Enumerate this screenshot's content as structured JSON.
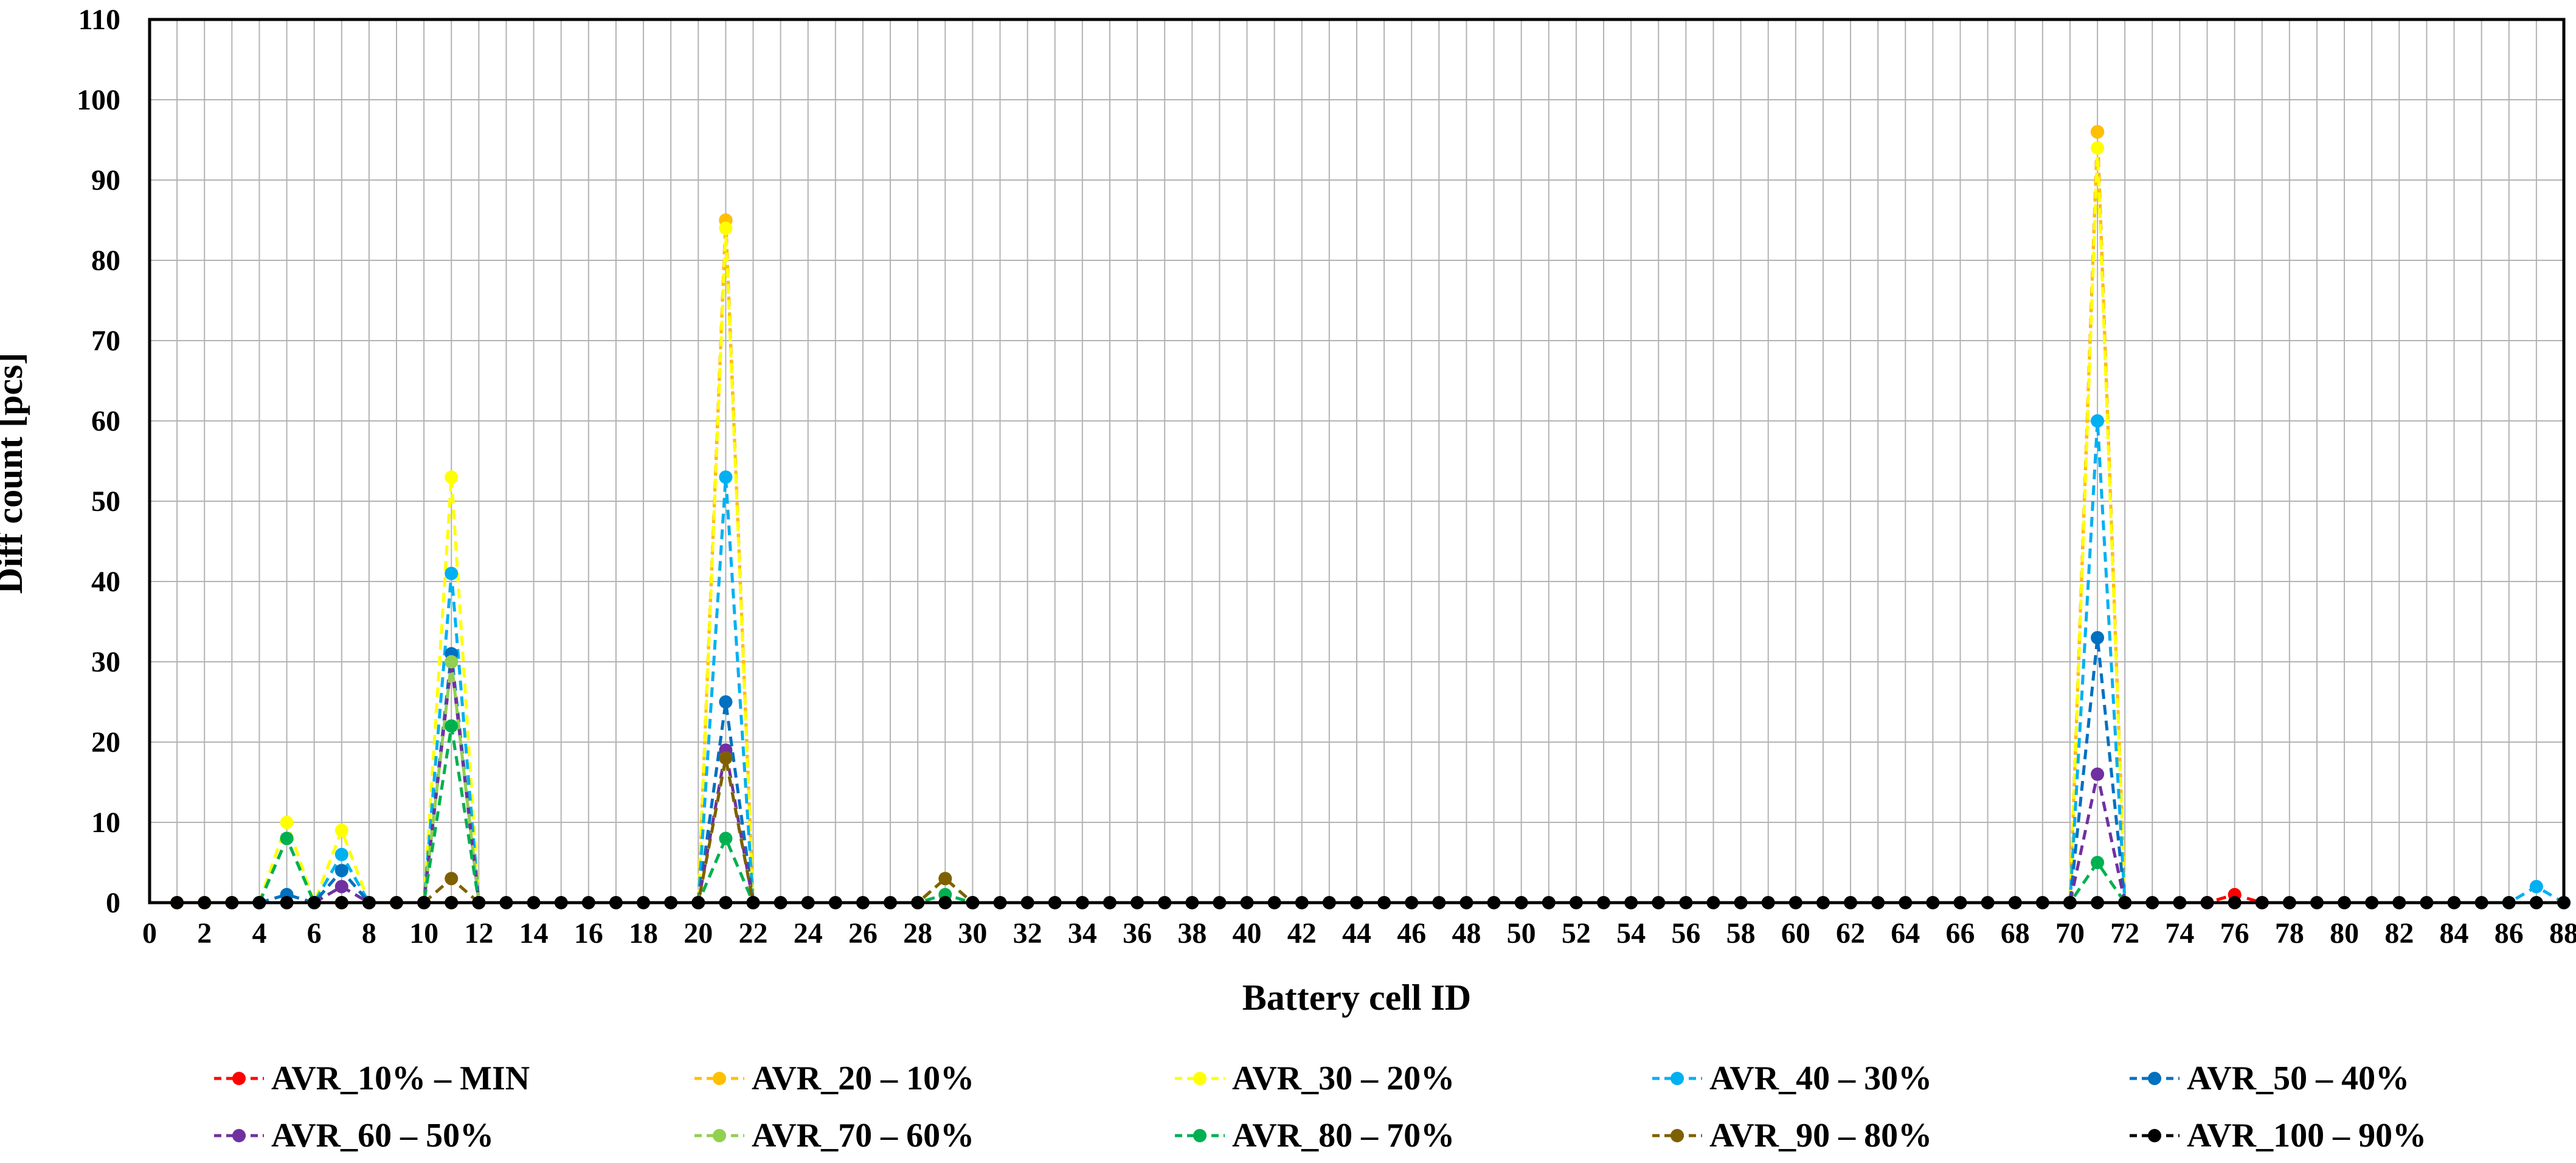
{
  "chart_data": {
    "type": "line",
    "title": "",
    "xlabel": "Battery cell ID",
    "ylabel": "Diff count [pcs]",
    "xlim": [
      0,
      88
    ],
    "ylim": [
      0,
      110
    ],
    "x_ticks": [
      0,
      2,
      4,
      6,
      8,
      10,
      12,
      14,
      16,
      18,
      20,
      22,
      24,
      26,
      28,
      30,
      32,
      34,
      36,
      38,
      40,
      42,
      44,
      46,
      48,
      50,
      52,
      54,
      56,
      58,
      60,
      62,
      64,
      66,
      68,
      70,
      72,
      74,
      76,
      78,
      80,
      82,
      84,
      86,
      88
    ],
    "y_ticks": [
      0,
      10,
      20,
      30,
      40,
      50,
      60,
      70,
      80,
      90,
      100,
      110
    ],
    "grid": true,
    "legend_position": "bottom",
    "series": [
      {
        "name": "AVR_10% – MIN",
        "color": "#ff0000",
        "points": [
          [
            1,
            0
          ],
          [
            2,
            0
          ],
          [
            3,
            0
          ],
          [
            4,
            0
          ],
          [
            5,
            0
          ],
          [
            6,
            0
          ],
          [
            7,
            0
          ],
          [
            8,
            0
          ],
          [
            9,
            0
          ],
          [
            10,
            0
          ],
          [
            11,
            0
          ],
          [
            12,
            0
          ],
          [
            20,
            0
          ],
          [
            21,
            85
          ],
          [
            22,
            0
          ],
          [
            70,
            0
          ],
          [
            71,
            96
          ],
          [
            72,
            0
          ],
          [
            75,
            0
          ],
          [
            76,
            1
          ],
          [
            77,
            0
          ]
        ]
      },
      {
        "name": "AVR_20 – 10%",
        "color": "#ffc000",
        "points": [
          [
            1,
            0
          ],
          [
            2,
            0
          ],
          [
            3,
            0
          ],
          [
            4,
            0
          ],
          [
            5,
            0
          ],
          [
            6,
            0
          ],
          [
            7,
            0
          ],
          [
            8,
            0
          ],
          [
            9,
            0
          ],
          [
            10,
            0
          ],
          [
            11,
            0
          ],
          [
            12,
            0
          ],
          [
            20,
            0
          ],
          [
            21,
            85
          ],
          [
            22,
            0
          ],
          [
            70,
            0
          ],
          [
            71,
            96
          ],
          [
            72,
            0
          ]
        ]
      },
      {
        "name": "AVR_30 – 20%",
        "color": "#ffff00",
        "points": [
          [
            4,
            0
          ],
          [
            5,
            10
          ],
          [
            6,
            0
          ],
          [
            7,
            9
          ],
          [
            8,
            0
          ],
          [
            10,
            0
          ],
          [
            11,
            53
          ],
          [
            12,
            0
          ],
          [
            20,
            0
          ],
          [
            21,
            84
          ],
          [
            22,
            0
          ],
          [
            70,
            0
          ],
          [
            71,
            94
          ],
          [
            72,
            0
          ]
        ]
      },
      {
        "name": "AVR_40 – 30%",
        "color": "#00b0f0",
        "points": [
          [
            4,
            0
          ],
          [
            5,
            8
          ],
          [
            6,
            0
          ],
          [
            7,
            6
          ],
          [
            8,
            0
          ],
          [
            10,
            0
          ],
          [
            11,
            41
          ],
          [
            12,
            0
          ],
          [
            20,
            0
          ],
          [
            21,
            53
          ],
          [
            22,
            0
          ],
          [
            70,
            0
          ],
          [
            71,
            60
          ],
          [
            72,
            0
          ],
          [
            86,
            0
          ],
          [
            87,
            2
          ],
          [
            88,
            0
          ]
        ]
      },
      {
        "name": "AVR_50 – 40%",
        "color": "#0070c0",
        "points": [
          [
            4,
            0
          ],
          [
            5,
            1
          ],
          [
            6,
            0
          ],
          [
            7,
            4
          ],
          [
            8,
            0
          ],
          [
            10,
            0
          ],
          [
            11,
            31
          ],
          [
            12,
            0
          ],
          [
            20,
            0
          ],
          [
            21,
            25
          ],
          [
            22,
            0
          ],
          [
            70,
            0
          ],
          [
            71,
            33
          ],
          [
            72,
            0
          ]
        ]
      },
      {
        "name": "AVR_60 – 50%",
        "color": "#7030a0",
        "points": [
          [
            6,
            0
          ],
          [
            7,
            2
          ],
          [
            8,
            0
          ],
          [
            10,
            0
          ],
          [
            11,
            30
          ],
          [
            12,
            0
          ],
          [
            20,
            0
          ],
          [
            21,
            19
          ],
          [
            22,
            0
          ],
          [
            70,
            0
          ],
          [
            71,
            16
          ],
          [
            72,
            0
          ]
        ]
      },
      {
        "name": "AVR_70 – 60%",
        "color": "#92d050",
        "points": [
          [
            10,
            0
          ],
          [
            11,
            30
          ],
          [
            12,
            0
          ],
          [
            20,
            0
          ],
          [
            21,
            18
          ],
          [
            22,
            0
          ],
          [
            28,
            0
          ],
          [
            29,
            3
          ],
          [
            30,
            0
          ]
        ]
      },
      {
        "name": "AVR_80 – 70%",
        "color": "#00b050",
        "points": [
          [
            4,
            0
          ],
          [
            5,
            8
          ],
          [
            6,
            0
          ],
          [
            10,
            0
          ],
          [
            11,
            22
          ],
          [
            12,
            0
          ],
          [
            20,
            0
          ],
          [
            21,
            8
          ],
          [
            22,
            0
          ],
          [
            28,
            0
          ],
          [
            29,
            1
          ],
          [
            30,
            0
          ],
          [
            70,
            0
          ],
          [
            71,
            5
          ],
          [
            72,
            0
          ]
        ]
      },
      {
        "name": "AVR_90 – 80%",
        "color": "#7f6000",
        "points": [
          [
            10,
            0
          ],
          [
            11,
            3
          ],
          [
            12,
            0
          ],
          [
            20,
            0
          ],
          [
            21,
            18
          ],
          [
            22,
            0
          ],
          [
            28,
            0
          ],
          [
            29,
            3
          ],
          [
            30,
            0
          ]
        ]
      },
      {
        "name": "AVR_100 – 90%",
        "color": "#000000",
        "points": [
          [
            1,
            0
          ],
          [
            2,
            0
          ],
          [
            3,
            0
          ],
          [
            4,
            0
          ],
          [
            5,
            0
          ],
          [
            6,
            0
          ],
          [
            7,
            0
          ],
          [
            8,
            0
          ],
          [
            9,
            0
          ],
          [
            10,
            0
          ],
          [
            11,
            0
          ],
          [
            12,
            0
          ],
          [
            13,
            0
          ],
          [
            14,
            0
          ],
          [
            15,
            0
          ],
          [
            16,
            0
          ],
          [
            17,
            0
          ],
          [
            18,
            0
          ],
          [
            19,
            0
          ],
          [
            20,
            0
          ],
          [
            21,
            0
          ],
          [
            22,
            0
          ],
          [
            23,
            0
          ],
          [
            24,
            0
          ],
          [
            25,
            0
          ],
          [
            26,
            0
          ],
          [
            27,
            0
          ],
          [
            28,
            0
          ],
          [
            29,
            0
          ],
          [
            30,
            0
          ],
          [
            31,
            0
          ],
          [
            32,
            0
          ],
          [
            33,
            0
          ],
          [
            34,
            0
          ],
          [
            35,
            0
          ],
          [
            36,
            0
          ],
          [
            37,
            0
          ],
          [
            38,
            0
          ],
          [
            39,
            0
          ],
          [
            40,
            0
          ],
          [
            41,
            0
          ],
          [
            42,
            0
          ],
          [
            43,
            0
          ],
          [
            44,
            0
          ],
          [
            45,
            0
          ],
          [
            46,
            0
          ],
          [
            47,
            0
          ],
          [
            48,
            0
          ],
          [
            49,
            0
          ],
          [
            50,
            0
          ],
          [
            51,
            0
          ],
          [
            52,
            0
          ],
          [
            53,
            0
          ],
          [
            54,
            0
          ],
          [
            55,
            0
          ],
          [
            56,
            0
          ],
          [
            57,
            0
          ],
          [
            58,
            0
          ],
          [
            59,
            0
          ],
          [
            60,
            0
          ],
          [
            61,
            0
          ],
          [
            62,
            0
          ],
          [
            63,
            0
          ],
          [
            64,
            0
          ],
          [
            65,
            0
          ],
          [
            66,
            0
          ],
          [
            67,
            0
          ],
          [
            68,
            0
          ],
          [
            69,
            0
          ],
          [
            70,
            0
          ],
          [
            71,
            0
          ],
          [
            72,
            0
          ],
          [
            73,
            0
          ],
          [
            74,
            0
          ],
          [
            75,
            0
          ],
          [
            76,
            0
          ],
          [
            77,
            0
          ],
          [
            78,
            0
          ],
          [
            79,
            0
          ],
          [
            80,
            0
          ],
          [
            81,
            0
          ],
          [
            82,
            0
          ],
          [
            83,
            0
          ],
          [
            84,
            0
          ],
          [
            85,
            0
          ],
          [
            86,
            0
          ],
          [
            87,
            0
          ],
          [
            88,
            0
          ]
        ]
      }
    ]
  }
}
